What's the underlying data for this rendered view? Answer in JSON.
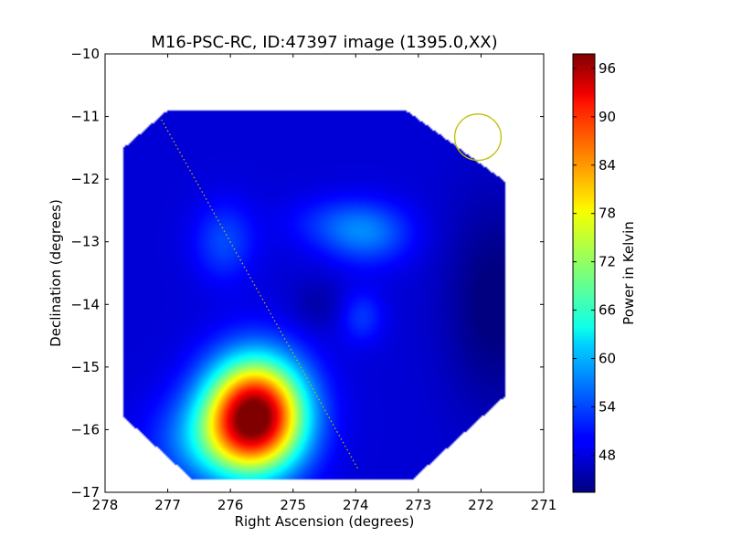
{
  "chart_data": {
    "type": "heatmap",
    "title": "M16-PSC-RC, ID:47397 image (1395.0,XX)",
    "xlabel": "Right Ascension (degrees)",
    "ylabel": "Declination (degrees)",
    "xlim": [
      278,
      271
    ],
    "ylim": [
      -17,
      -10
    ],
    "x_ticks": [
      278,
      277,
      276,
      275,
      274,
      273,
      272,
      271
    ],
    "x_tick_labels": [
      "278",
      "277",
      "276",
      "275",
      "274",
      "273",
      "272",
      "271"
    ],
    "y_ticks": [
      -10,
      -11,
      -12,
      -13,
      -14,
      -15,
      -16,
      -17
    ],
    "y_tick_labels": [
      "−10",
      "−11",
      "−12",
      "−13",
      "−14",
      "−15",
      "−16",
      "−17"
    ],
    "colorbar": {
      "label": "Power in Kelvin",
      "colormap": "jet",
      "range": [
        43.4,
        97.8
      ],
      "ticks": [
        48,
        54,
        60,
        66,
        72,
        78,
        84,
        90,
        96
      ],
      "tick_labels": [
        "48",
        "54",
        "60",
        "66",
        "72",
        "78",
        "84",
        "90",
        "96"
      ]
    },
    "map_boundary": [
      [
        277.0,
        -10.9
      ],
      [
        273.2,
        -10.9
      ],
      [
        271.6,
        -12.05
      ],
      [
        271.6,
        -15.45
      ],
      [
        273.1,
        -16.8
      ],
      [
        276.6,
        -16.8
      ],
      [
        277.7,
        -15.8
      ],
      [
        277.7,
        -11.5
      ]
    ],
    "background_level": 48,
    "features": [
      {
        "ra": 275.6,
        "dec": -15.7,
        "peak": 97
      },
      {
        "ra": 275.6,
        "dec": -15.9,
        "peak": 88
      },
      {
        "ra": 276.1,
        "dec": -16.1,
        "peak": 76
      },
      {
        "ra": 273.8,
        "dec": -12.9,
        "peak": 56
      },
      {
        "ra": 276.1,
        "dec": -13.0,
        "peak": 55
      },
      {
        "ra": 273.9,
        "dec": -14.2,
        "peak": 54
      },
      {
        "ra": 271.9,
        "dec": -14.0,
        "peak": 44
      }
    ],
    "beam_circle": {
      "ra": 272.05,
      "dec": -11.33,
      "radius_deg": 0.37,
      "color": "#bfbf00"
    },
    "scan_line": {
      "from": [
        277.1,
        -11.05
      ],
      "to": [
        273.95,
        -16.65
      ],
      "color": "#bfbf00"
    }
  }
}
